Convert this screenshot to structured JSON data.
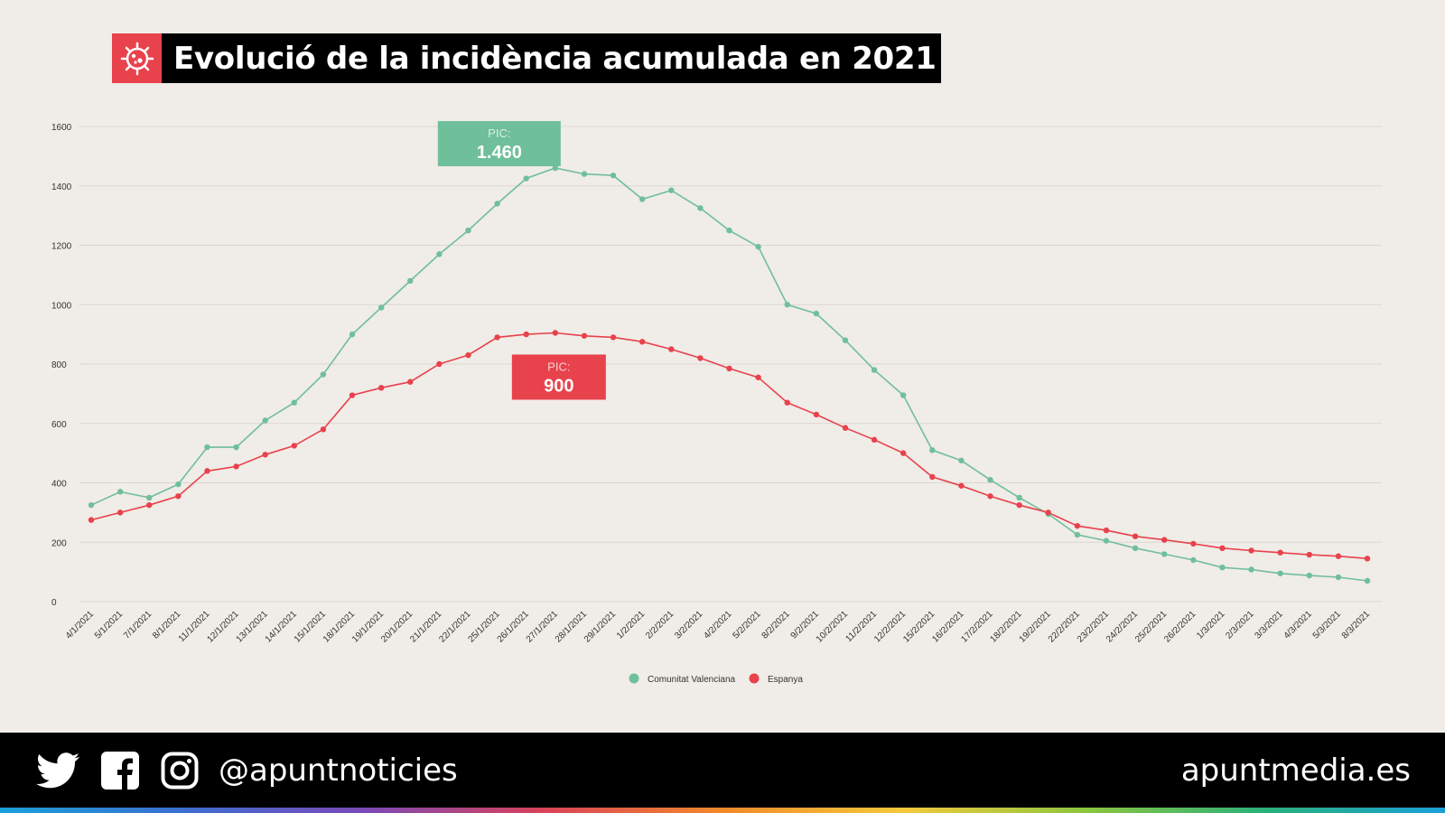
{
  "title": "Evolució de la incidència acumulada en 2021",
  "chart_data": {
    "type": "line",
    "categories": [
      "4/1/2021",
      "5/1/2021",
      "7/1/2021",
      "8/1/2021",
      "11/1/2021",
      "12/1/2021",
      "13/1/2021",
      "14/1/2021",
      "15/1/2021",
      "18/1/2021",
      "19/1/2021",
      "20/1/2021",
      "21/1/2021",
      "22/1/2021",
      "25/1/2021",
      "26/1/2021",
      "27/1/2021",
      "28/1/2021",
      "29/1/2021",
      "1/2/2021",
      "2/2/2021",
      "3/2/2021",
      "4/2/2021",
      "5/2/2021",
      "8/2/2021",
      "9/2/2021",
      "10/2/2021",
      "11/2/2021",
      "12/2/2021",
      "15/2/2021",
      "16/2/2021",
      "17/2/2021",
      "18/2/2021",
      "19/2/2021",
      "22/2/2021",
      "23/2/2021",
      "24/2/2021",
      "25/2/2021",
      "26/2/2021",
      "1/3/2021",
      "2/3/2021",
      "3/3/2021",
      "4/3/2021",
      "5/3/2021",
      "8/3/2021"
    ],
    "series": [
      {
        "name": "Comunitat Valenciana",
        "color": "#6fbf9a",
        "values": [
          325,
          370,
          350,
          395,
          520,
          520,
          610,
          670,
          765,
          900,
          990,
          1080,
          1170,
          1250,
          1340,
          1425,
          1460,
          1440,
          1435,
          1355,
          1385,
          1325,
          1250,
          1195,
          1000,
          970,
          880,
          780,
          695,
          510,
          475,
          410,
          350,
          295,
          225,
          205,
          180,
          160,
          140,
          115,
          108,
          95,
          88,
          82,
          70
        ]
      },
      {
        "name": "Espanya",
        "color": "#e8424c",
        "values": [
          275,
          300,
          325,
          355,
          440,
          455,
          495,
          525,
          580,
          695,
          720,
          740,
          800,
          830,
          890,
          900,
          905,
          895,
          890,
          875,
          850,
          820,
          785,
          755,
          670,
          630,
          585,
          545,
          500,
          420,
          390,
          355,
          325,
          300,
          255,
          240,
          220,
          208,
          195,
          180,
          172,
          165,
          158,
          153,
          145
        ]
      }
    ],
    "ylim": [
      0,
      1600
    ],
    "yticks": [
      0,
      200,
      400,
      600,
      800,
      1000,
      1200,
      1400,
      1600
    ],
    "grid": true,
    "legend": "bottom-center",
    "annotations": [
      {
        "label": "PIC:",
        "value": "1.460",
        "series": 0,
        "color": "#6fbf9a"
      },
      {
        "label": "PIC:",
        "value": "900",
        "series": 1,
        "color": "#e8424c"
      }
    ]
  },
  "footer": {
    "handle": "@apuntnoticies",
    "site": "apuntmedia.es",
    "icons": [
      "twitter-icon",
      "facebook-icon",
      "instagram-icon"
    ]
  }
}
